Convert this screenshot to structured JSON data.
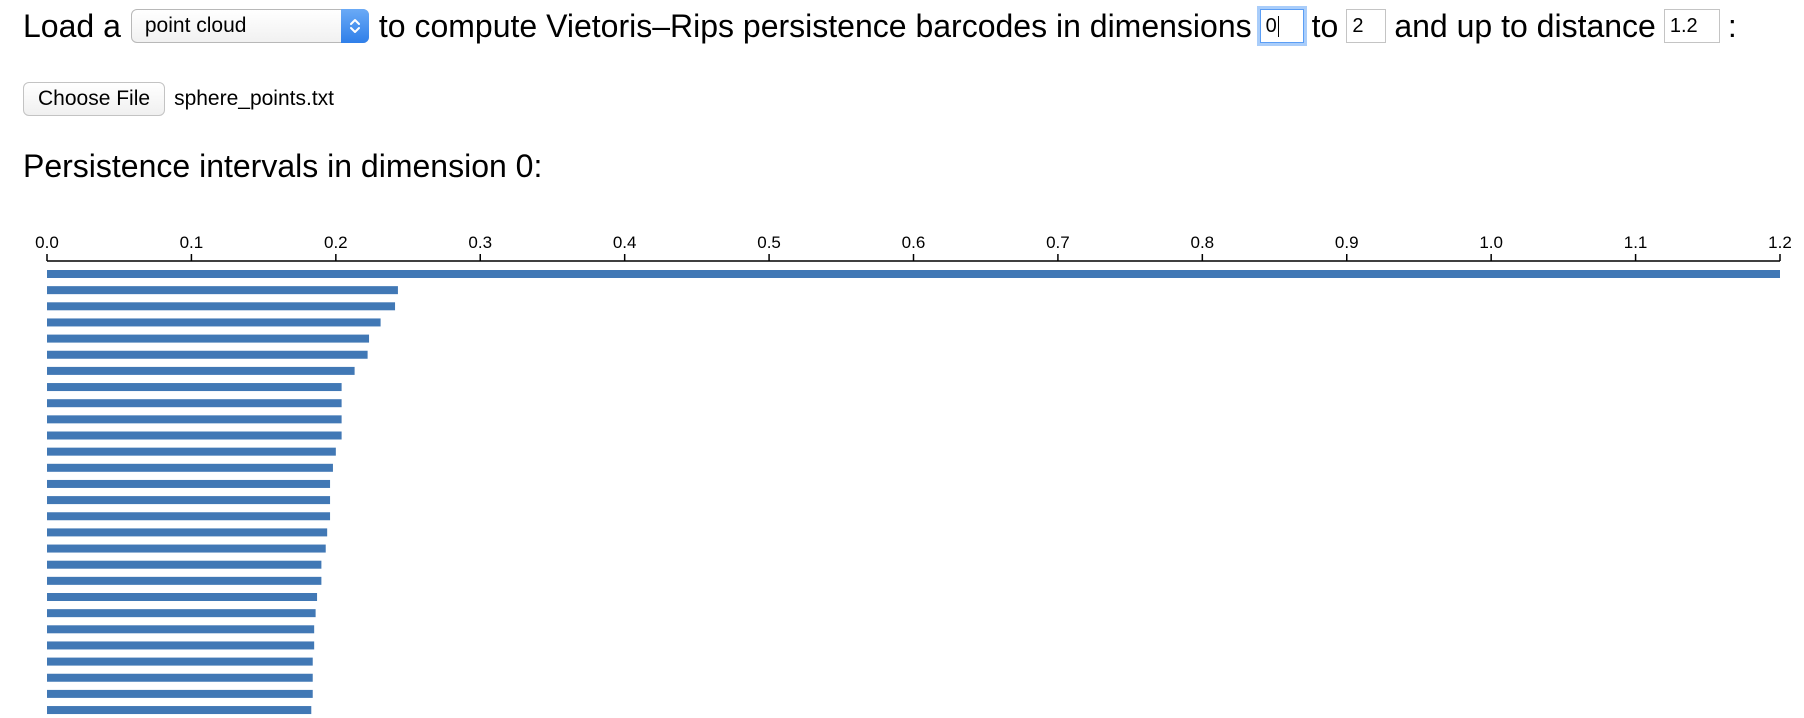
{
  "controls": {
    "prefix": "Load a",
    "select_value": "point cloud",
    "mid_text": "to compute Vietoris–Rips persistence barcodes in dimensions",
    "dim_min": "0",
    "to_text": "to",
    "dim_max": "2",
    "distance_text": "and up to distance",
    "max_distance": "1.2",
    "suffix": ":"
  },
  "file": {
    "button_label": "Choose File",
    "filename": "sphere_points.txt"
  },
  "section": {
    "title": "Persistence intervals in dimension 0:"
  },
  "colors": {
    "bar": "#4178b5",
    "axis": "#000000"
  },
  "chart_data": {
    "type": "bar",
    "orientation": "horizontal",
    "dimension": 0,
    "xlim": [
      0,
      1.2
    ],
    "x_ticks": [
      "0.0",
      "0.1",
      "0.2",
      "0.3",
      "0.4",
      "0.5",
      "0.6",
      "0.7",
      "0.8",
      "0.9",
      "1.0",
      "1.1",
      "1.2"
    ],
    "axis_position": "top",
    "grid": false,
    "intervals": [
      {
        "birth": 0,
        "death": 1.2
      },
      {
        "birth": 0,
        "death": 0.243
      },
      {
        "birth": 0,
        "death": 0.241
      },
      {
        "birth": 0,
        "death": 0.231
      },
      {
        "birth": 0,
        "death": 0.223
      },
      {
        "birth": 0,
        "death": 0.222
      },
      {
        "birth": 0,
        "death": 0.213
      },
      {
        "birth": 0,
        "death": 0.204
      },
      {
        "birth": 0,
        "death": 0.204
      },
      {
        "birth": 0,
        "death": 0.204
      },
      {
        "birth": 0,
        "death": 0.204
      },
      {
        "birth": 0,
        "death": 0.2
      },
      {
        "birth": 0,
        "death": 0.198
      },
      {
        "birth": 0,
        "death": 0.196
      },
      {
        "birth": 0,
        "death": 0.196
      },
      {
        "birth": 0,
        "death": 0.196
      },
      {
        "birth": 0,
        "death": 0.194
      },
      {
        "birth": 0,
        "death": 0.193
      },
      {
        "birth": 0,
        "death": 0.19
      },
      {
        "birth": 0,
        "death": 0.19
      },
      {
        "birth": 0,
        "death": 0.187
      },
      {
        "birth": 0,
        "death": 0.186
      },
      {
        "birth": 0,
        "death": 0.185
      },
      {
        "birth": 0,
        "death": 0.185
      },
      {
        "birth": 0,
        "death": 0.184
      },
      {
        "birth": 0,
        "death": 0.184
      },
      {
        "birth": 0,
        "death": 0.184
      },
      {
        "birth": 0,
        "death": 0.183
      }
    ]
  }
}
